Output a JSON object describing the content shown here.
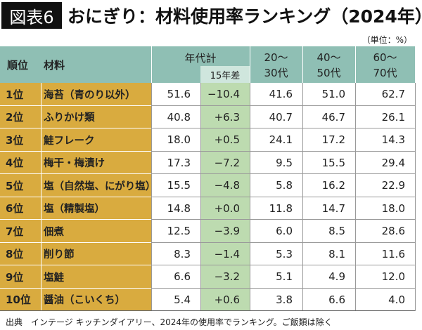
{
  "header": {
    "badge": "図表6",
    "title": "おにぎり：材料使用率ランキング（2024年）",
    "unit": "（単位：%）"
  },
  "table": {
    "rank_header": "順位",
    "material_header": "材料",
    "total_header": "年代計",
    "diff_header": "15年差",
    "age_headers": [
      [
        "20〜",
        "30代"
      ],
      [
        "40〜",
        "50代"
      ],
      [
        "60〜",
        "70代"
      ]
    ],
    "rows": [
      [
        "1位",
        "海苔（青のり以外）",
        "51.6",
        "−10.4",
        "41.6",
        "51.0",
        "62.7"
      ],
      [
        "2位",
        "ふりかけ類",
        "40.8",
        "+6.3",
        "40.7",
        "46.7",
        "26.1"
      ],
      [
        "3位",
        "鮭フレーク",
        "18.0",
        "+0.5",
        "24.1",
        "17.2",
        "14.3"
      ],
      [
        "4位",
        "梅干・梅漬け",
        "17.3",
        "−7.2",
        "9.5",
        "15.5",
        "29.4"
      ],
      [
        "5位",
        "塩（自然塩、にがり塩）",
        "15.5",
        "−4.8",
        "5.8",
        "16.2",
        "22.9"
      ],
      [
        "6位",
        "塩（精製塩）",
        "14.8",
        "+0.0",
        "11.8",
        "14.7",
        "18.0"
      ],
      [
        "7位",
        "佃煮",
        "12.5",
        "−3.9",
        "6.0",
        "8.5",
        "28.6"
      ],
      [
        "8位",
        "削り節",
        "8.3",
        "−1.4",
        "5.3",
        "8.1",
        "11.6"
      ],
      [
        "9位",
        "塩鮭",
        "6.6",
        "−3.2",
        "5.1",
        "4.9",
        "12.0"
      ],
      [
        "10位",
        "醤油（こいくち）",
        "5.4",
        "+0.6",
        "3.8",
        "6.6",
        "4.0"
      ]
    ]
  },
  "footer": {
    "source": "出典　インテージ キッチンダイアリー、2024年の使用率でランキング。ご飯類は除く"
  }
}
